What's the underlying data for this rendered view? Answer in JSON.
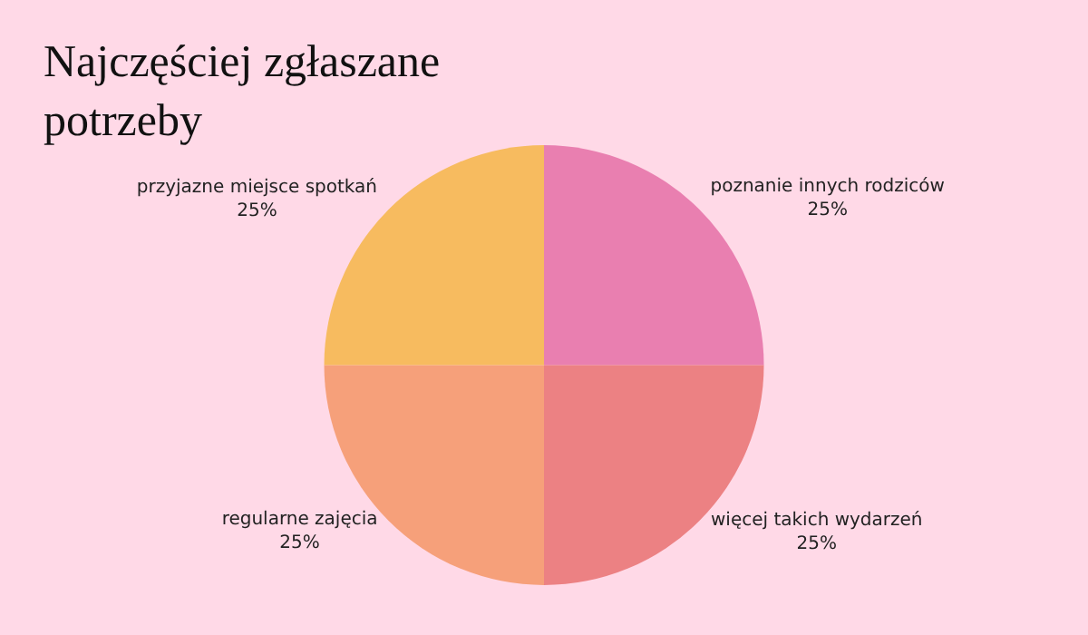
{
  "chart_data": {
    "type": "pie",
    "title": "Najczęściej zgłaszane potrzeby",
    "categories": [
      "poznanie innych rodziców",
      "więcej takich wydarzeń",
      "regularne zajęcia",
      "przyjazne miejsce spotkań"
    ],
    "values": [
      25,
      25,
      25,
      25
    ],
    "value_labels": [
      "25%",
      "25%",
      "25%",
      "25%"
    ],
    "colors": [
      "#e97fb0",
      "#ec8183",
      "#f6a07a",
      "#f7bb5f"
    ],
    "legend": false
  }
}
